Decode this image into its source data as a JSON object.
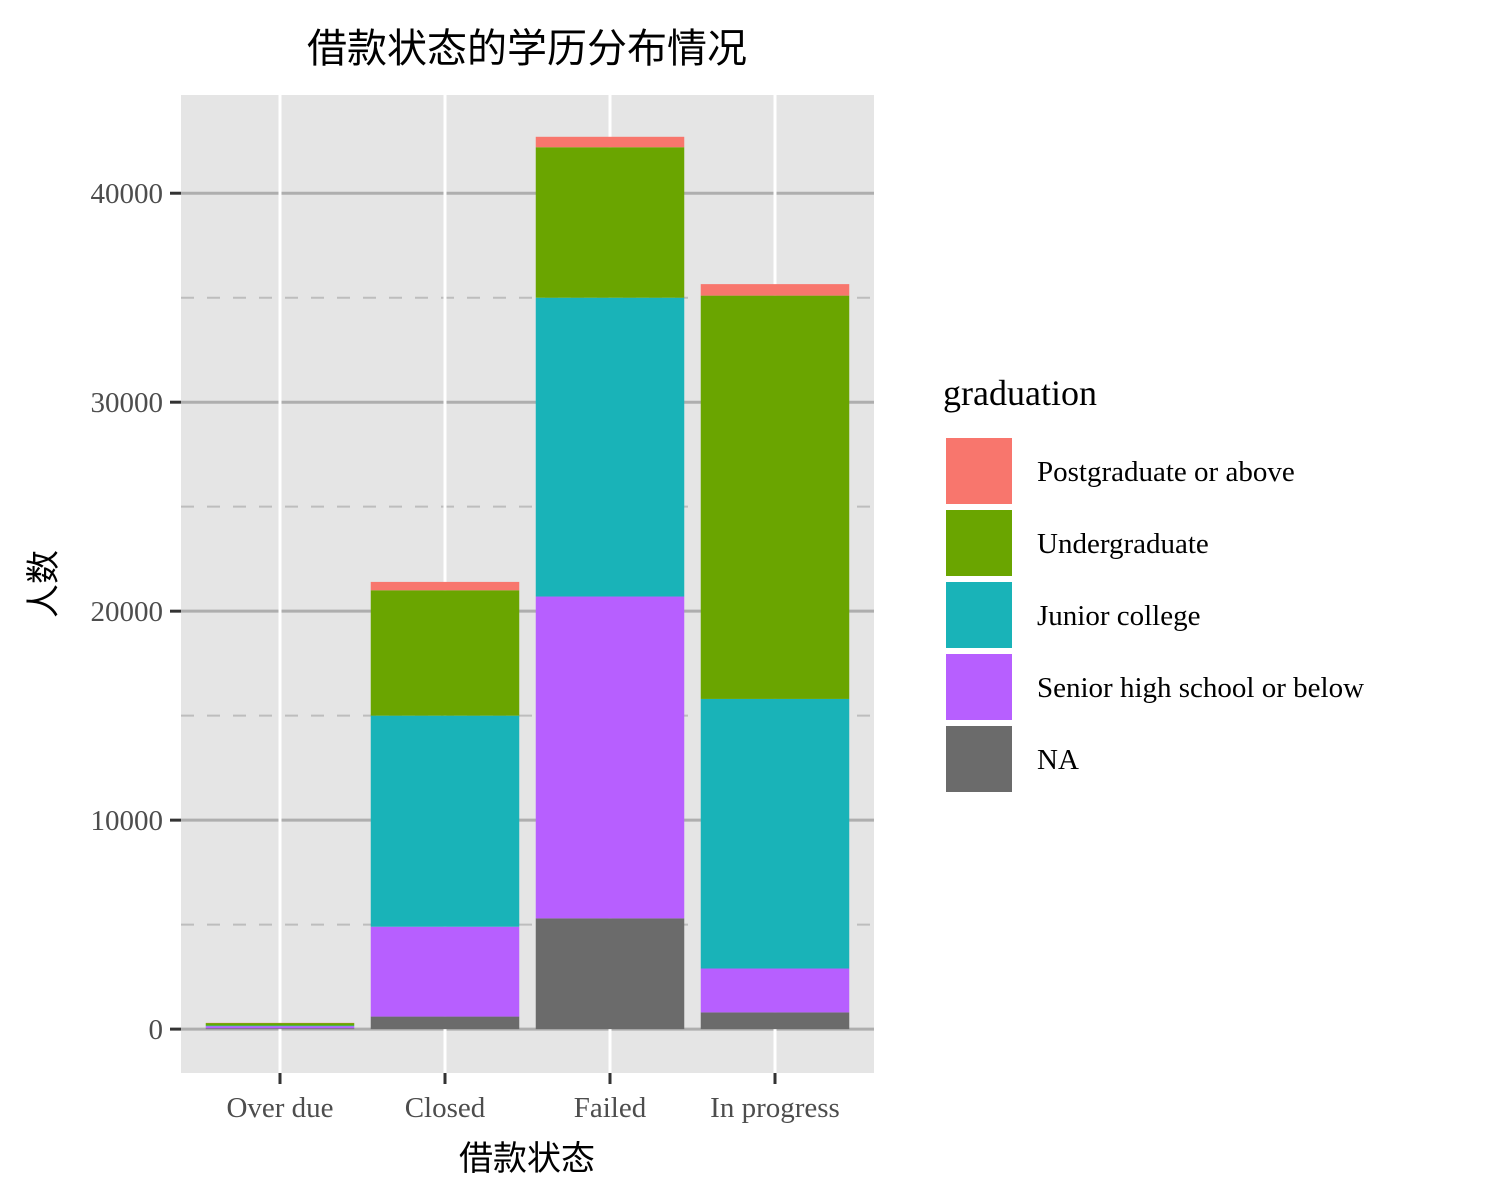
{
  "chart_data": {
    "type": "bar",
    "stacked": true,
    "title": "借款状态的学历分布情况",
    "xlabel": "借款状态",
    "ylabel": "人数",
    "categories": [
      "Over due",
      "Closed",
      "Failed",
      "In progress"
    ],
    "ylim": [
      -2100,
      44700
    ],
    "yticks": [
      0,
      10000,
      20000,
      30000,
      40000
    ],
    "yticks_labels": [
      "0",
      "10000",
      "20000",
      "30000",
      "40000"
    ],
    "grid": true,
    "legend_title": "graduation",
    "legend_position": "right",
    "stack_order": [
      "NA",
      "Senior high school or below",
      "Junior college",
      "Undergraduate",
      "Postgraduate or above"
    ],
    "series": [
      {
        "name": "Postgraduate or above",
        "color": "#F8766D",
        "values": [
          10,
          400,
          500,
          550
        ]
      },
      {
        "name": "Undergraduate",
        "color": "#6AA500",
        "values": [
          120,
          6000,
          7200,
          19300
        ]
      },
      {
        "name": "Junior college",
        "color": "#19B3B8",
        "values": [
          30,
          10100,
          14300,
          12900
        ]
      },
      {
        "name": "Senior high school or below",
        "color": "#B75FFF",
        "values": [
          100,
          4300,
          15400,
          2100
        ]
      },
      {
        "name": "NA",
        "color": "#6B6B6B",
        "values": [
          40,
          600,
          5300,
          800
        ]
      }
    ]
  }
}
